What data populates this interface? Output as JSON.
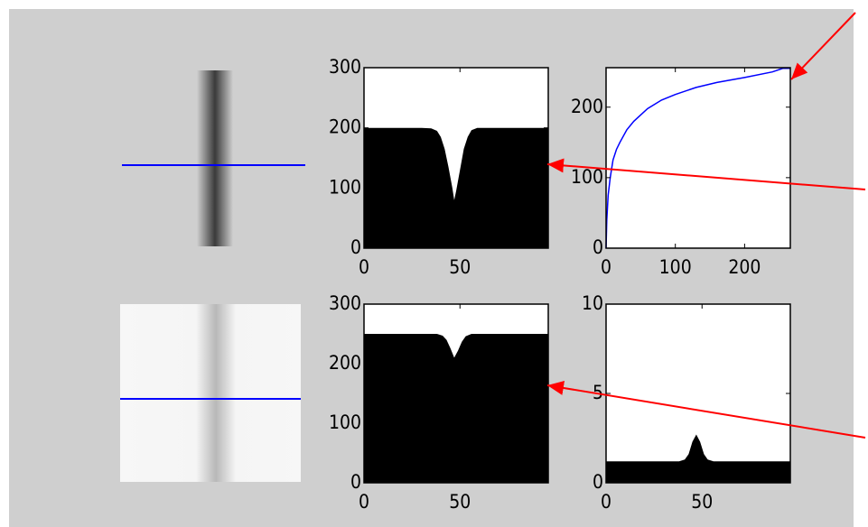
{
  "chart_data": [
    {
      "type": "area",
      "color": "#000000",
      "x": [
        0,
        30,
        35,
        38,
        40,
        42,
        44,
        46,
        47,
        48,
        50,
        52,
        54,
        56,
        59,
        65,
        96
      ],
      "values": [
        200,
        200,
        199,
        195,
        185,
        165,
        135,
        100,
        80,
        95,
        130,
        165,
        185,
        196,
        200,
        200,
        200
      ],
      "xlim": [
        0,
        96
      ],
      "ylim": [
        0,
        300
      ],
      "xticks": [
        0,
        50
      ],
      "yticks": [
        0,
        100,
        200,
        300
      ]
    },
    {
      "type": "line",
      "color": "#0000ff",
      "x": [
        0,
        1,
        3,
        6,
        10,
        15,
        20,
        30,
        40,
        60,
        80,
        100,
        130,
        160,
        200,
        240,
        255,
        266
      ],
      "values": [
        0,
        40,
        75,
        100,
        125,
        140,
        150,
        168,
        180,
        198,
        210,
        218,
        228,
        235,
        242,
        250,
        255,
        255
      ],
      "xlim": [
        0,
        266
      ],
      "ylim": [
        0,
        256
      ],
      "xticks": [
        0,
        100,
        200
      ],
      "yticks": [
        0,
        100,
        200
      ]
    },
    {
      "type": "area",
      "color": "#000000",
      "x": [
        0,
        38,
        41,
        43,
        45,
        47,
        49,
        51,
        53,
        56,
        60,
        96
      ],
      "values": [
        250,
        250,
        247,
        240,
        226,
        210,
        222,
        237,
        246,
        250,
        250,
        250
      ],
      "xlim": [
        0,
        96
      ],
      "ylim": [
        0,
        300
      ],
      "xticks": [
        0,
        50
      ],
      "yticks": [
        0,
        100,
        200,
        300
      ]
    },
    {
      "type": "area",
      "color": "#000000",
      "x": [
        0,
        38,
        41,
        43,
        45,
        47,
        49,
        51,
        53,
        56,
        96
      ],
      "values": [
        1.2,
        1.2,
        1.3,
        1.6,
        2.3,
        2.7,
        2.3,
        1.6,
        1.3,
        1.2,
        1.2
      ],
      "xlim": [
        0,
        96
      ],
      "ylim": [
        0,
        10
      ],
      "xticks": [
        0,
        50
      ],
      "yticks": [
        0,
        5,
        10
      ]
    }
  ]
}
